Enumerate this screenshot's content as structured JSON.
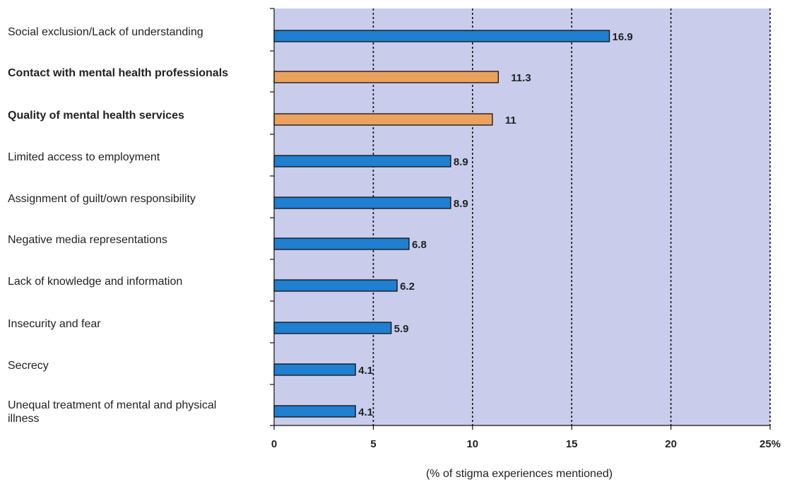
{
  "chart_data": {
    "type": "bar",
    "orientation": "horizontal",
    "categories": [
      [
        "Social exclusion/Lack of understanding"
      ],
      [
        "Contact with mental health professionals"
      ],
      [
        "Quality of mental health services"
      ],
      [
        "Limited access to employment"
      ],
      [
        "Assignment of guilt/own responsibility"
      ],
      [
        "Negative media representations"
      ],
      [
        "Lack of knowledge and information"
      ],
      [
        "Insecurity and fear"
      ],
      [
        "Secrecy"
      ],
      [
        "Unequal treatment of mental and physical",
        "illness"
      ]
    ],
    "values": [
      16.9,
      11.3,
      11,
      8.9,
      8.9,
      6.8,
      6.2,
      5.9,
      4.1,
      4.1
    ],
    "value_labels": [
      "16.9",
      "11.3",
      "11",
      "8.9",
      "8.9",
      "6.8",
      "6.2",
      "5.9",
      "4.1",
      "4.1"
    ],
    "highlighted": [
      false,
      true,
      true,
      false,
      false,
      false,
      false,
      false,
      false,
      false
    ],
    "xlim": [
      0,
      25
    ],
    "xticks": [
      0,
      5,
      10,
      15,
      20,
      25
    ],
    "xtick_labels": [
      "0",
      "5",
      "10",
      "15",
      "20",
      "25%"
    ],
    "xlabel": "(% of  stigma experiences mentioned)",
    "grid": "vertical dotted",
    "colors": {
      "plot_background": "#c9cdeb",
      "bar": "#1f7fd0",
      "highlight_bar": "#eba25f",
      "outline": "#111111"
    }
  }
}
